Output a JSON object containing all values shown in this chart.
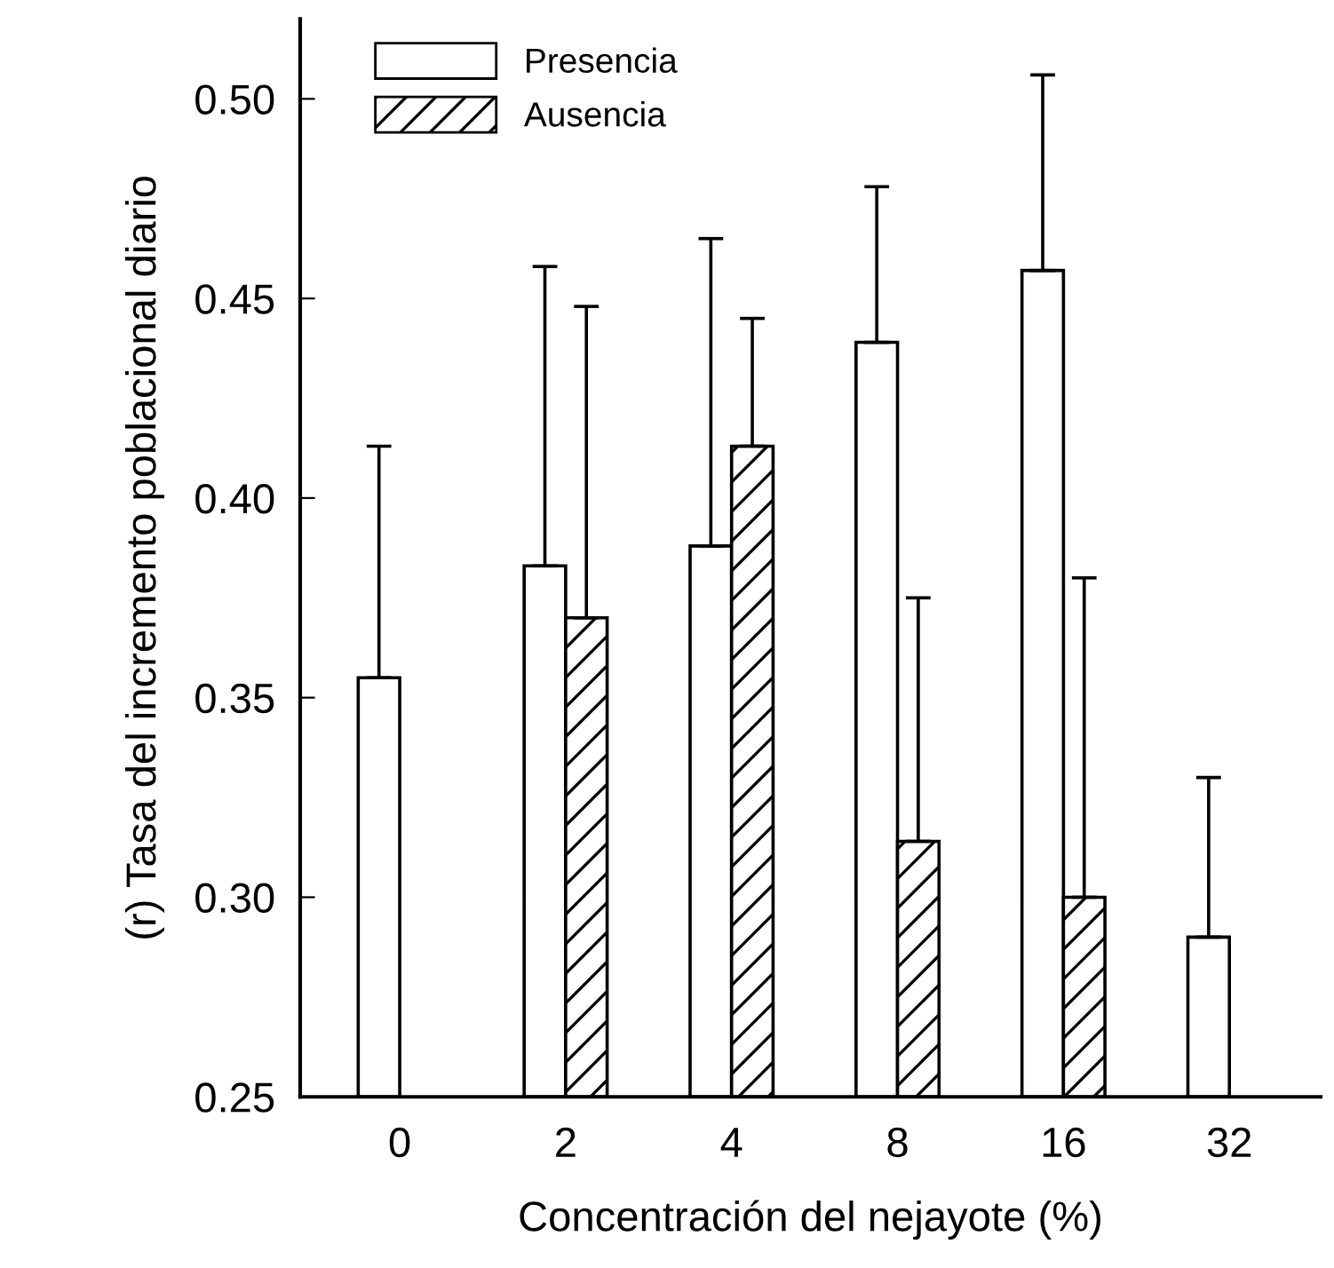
{
  "chart_data": {
    "type": "bar",
    "xlabel": "Concentración del nejayote (%)",
    "ylabel": "(r) Tasa del incremento poblacional diario",
    "categories": [
      "0",
      "2",
      "4",
      "8",
      "16",
      "32"
    ],
    "series": [
      {
        "name": "Presencia",
        "color": "#ffffff",
        "values": [
          0.355,
          0.383,
          0.388,
          0.439,
          0.457,
          0.29
        ],
        "errors": [
          [
            0.355,
            0.413
          ],
          [
            0.383,
            0.458
          ],
          [
            0.388,
            0.465
          ],
          [
            0.439,
            0.478
          ],
          [
            0.457,
            0.506
          ],
          [
            0.29,
            0.33
          ]
        ]
      },
      {
        "name": "Ausencia",
        "color": "#000000",
        "values": [
          null,
          0.37,
          0.413,
          0.314,
          0.3,
          null
        ],
        "errors": [
          null,
          [
            0.37,
            0.448
          ],
          [
            0.413,
            0.445
          ],
          [
            0.314,
            0.375
          ],
          [
            0.3,
            0.38
          ],
          null
        ]
      }
    ],
    "ylim": [
      0.25,
      0.52
    ],
    "yticks": [
      0.25,
      {
        "value": 0.3,
        "label": "0.30"
      },
      0.35,
      {
        "value": 0.4,
        "label": "0.40"
      },
      0.45,
      {
        "value": 0.5,
        "label": "0.50"
      }
    ],
    "grid": false,
    "legend": "top left"
  }
}
